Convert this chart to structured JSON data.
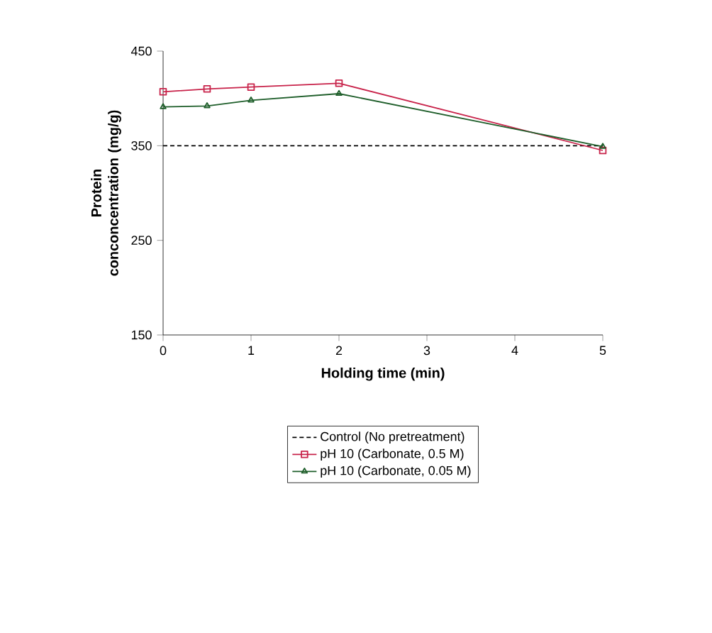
{
  "chart_data": {
    "type": "line",
    "xlabel": "Holding time (min)",
    "ylabel": "Protein conconcentration (mg/g)",
    "xlim": [
      0,
      5
    ],
    "xticks": [
      0,
      1,
      2,
      3,
      4,
      5
    ],
    "ylim": [
      150,
      450
    ],
    "yticks": [
      150,
      250,
      350,
      450
    ],
    "legend": "bottom",
    "x": [
      0,
      0.5,
      1,
      2,
      5
    ],
    "series": [
      {
        "name": "Control (No pretreatment)",
        "color": "#000000",
        "line_style": "dashed",
        "marker": "none",
        "x": [
          0,
          5
        ],
        "values": [
          350,
          350
        ]
      },
      {
        "name": "pH 10 (Carbonate, 0.5 M)",
        "color": "#c8234a",
        "marker": "square",
        "values": [
          407,
          410,
          412,
          416,
          345
        ]
      },
      {
        "name": "pH 10 (Carbonate, 0.05 M)",
        "color": "#1e5e2a",
        "marker": "triangle",
        "values": [
          391,
          392,
          398,
          405,
          349
        ]
      }
    ]
  }
}
